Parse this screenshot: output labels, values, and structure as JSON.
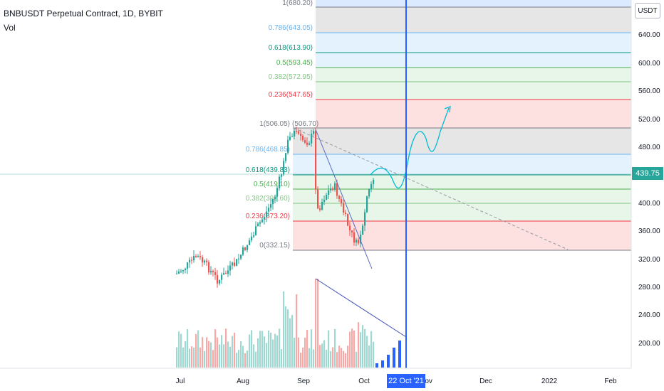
{
  "symbol_title": "BNBUSDT Perpetual Contract, 1D, BYBIT",
  "volume_label": "Vol",
  "currency": "USDT",
  "price_tag": "439.75",
  "cursor_date": "22 Oct '21",
  "y_axis": [
    "640.00",
    "600.00",
    "560.00",
    "520.00",
    "480.00",
    "440.00",
    "400.00",
    "360.00",
    "320.00",
    "280.00",
    "240.00",
    "200.00"
  ],
  "x_axis": [
    "Jul",
    "Aug",
    "Sep",
    "Oct",
    "Nov",
    "Dec",
    "2022",
    "Feb"
  ],
  "fib_right": [
    {
      "label": "1(680.20)",
      "color": "#787b86"
    },
    {
      "label": "0.786(643.05)",
      "color": "#64b5f6"
    },
    {
      "label": "0.618(613.90)",
      "color": "#089981"
    },
    {
      "label": "0.5(593.45)",
      "color": "#4caf50"
    },
    {
      "label": "0.382(572.95)",
      "color": "#81c784"
    },
    {
      "label": "0.236(547.65)",
      "color": "#f23645"
    }
  ],
  "fib_left": [
    {
      "label": "1(506.05)",
      "color": "#787b86"
    },
    {
      "label": "0.786(468.85)",
      "color": "#64b5f6"
    },
    {
      "label": "0.618(439.83)",
      "color": "#089981"
    },
    {
      "label": "0.5(419.10)",
      "color": "#4caf50"
    },
    {
      "label": "0.382(398.60)",
      "color": "#81c784"
    },
    {
      "label": "0.236(373.20)",
      "color": "#f23645"
    },
    {
      "label": "0(332.15)",
      "color": "#787b86"
    }
  ],
  "fib_top_right_label": "(506.70)",
  "colors": {
    "up": "#26a69a",
    "down": "#ef5350",
    "cursor": "#2962ff",
    "projection": "#00bcd4"
  }
}
